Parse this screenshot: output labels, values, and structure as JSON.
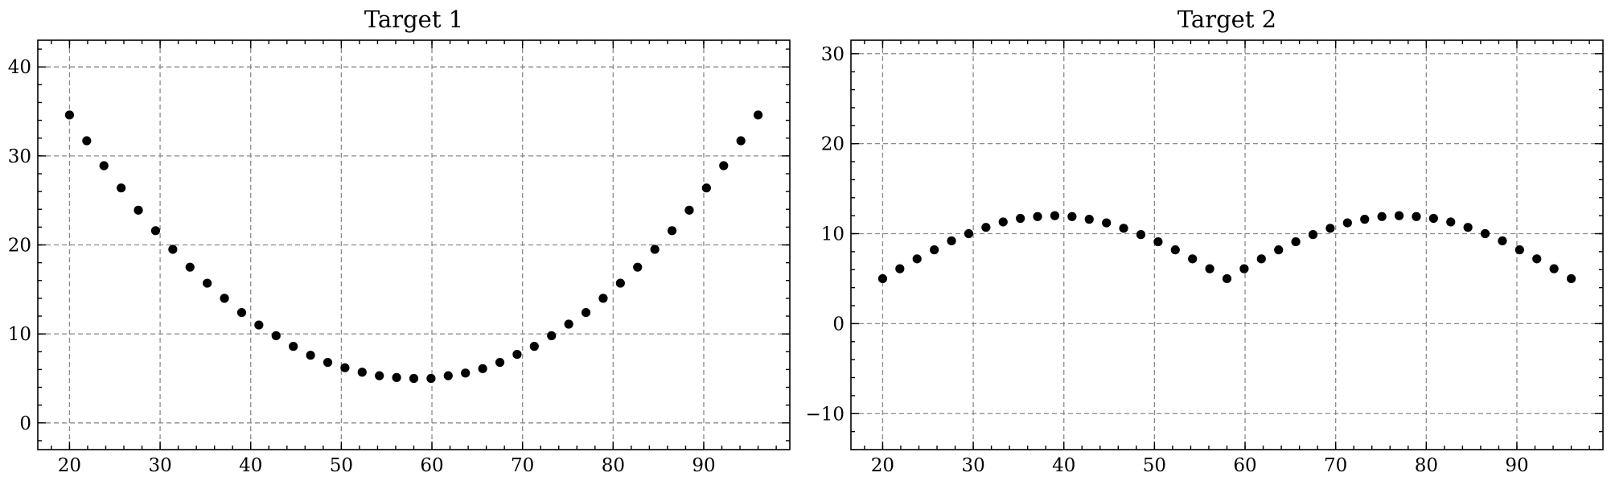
{
  "chart_data": [
    {
      "type": "scatter",
      "title": "Target 1",
      "xlabel": "",
      "ylabel": "",
      "xlim": [
        16.5,
        99.5
      ],
      "ylim": [
        -3,
        43
      ],
      "xticks": [
        20,
        30,
        40,
        50,
        60,
        70,
        80,
        90
      ],
      "yticks": [
        0,
        10,
        20,
        30,
        40
      ],
      "x_minor_step": 2,
      "y_minor_step": 2,
      "grid": true,
      "marker_color": "#000000",
      "series": [
        {
          "x": [
            20,
            21.9,
            23.8,
            25.7,
            27.6,
            29.5,
            31.4,
            33.3,
            35.2,
            37.1,
            39.0,
            40.9,
            42.8,
            44.7,
            46.6,
            48.5,
            50.4,
            52.3,
            54.2,
            56.1,
            58.0,
            59.9,
            61.8,
            63.7,
            65.6,
            67.5,
            69.4,
            71.3,
            73.2,
            75.1,
            77.0,
            78.9,
            80.8,
            82.7,
            84.6,
            86.5,
            88.4,
            90.3,
            92.2,
            94.1,
            96.0
          ],
          "y": [
            34.6,
            31.7,
            28.9,
            26.4,
            23.9,
            21.6,
            19.5,
            17.5,
            15.7,
            14.0,
            12.4,
            11.0,
            9.8,
            8.6,
            7.6,
            6.8,
            6.2,
            5.7,
            5.3,
            5.1,
            5.0,
            5.0,
            5.3,
            5.6,
            6.1,
            6.8,
            7.7,
            8.6,
            9.8,
            11.1,
            12.4,
            14.0,
            15.7,
            17.5,
            19.5,
            21.6,
            23.9,
            26.4,
            28.9,
            31.7,
            34.6
          ]
        }
      ]
    },
    {
      "type": "scatter",
      "title": "Target 2",
      "xlabel": "",
      "ylabel": "",
      "xlim": [
        16.5,
        99.5
      ],
      "ylim": [
        -14,
        31.5
      ],
      "xticks": [
        20,
        30,
        40,
        50,
        60,
        70,
        80,
        90
      ],
      "yticks": [
        -10,
        0,
        10,
        20,
        30
      ],
      "x_minor_step": 2,
      "y_minor_step": 2,
      "grid": true,
      "marker_color": "#000000",
      "series": [
        {
          "x": [
            20,
            21.9,
            23.8,
            25.7,
            27.6,
            29.5,
            31.4,
            33.3,
            35.2,
            37.1,
            39.0,
            40.9,
            42.8,
            44.7,
            46.6,
            48.5,
            50.4,
            52.3,
            54.2,
            56.1,
            58.0,
            59.9,
            61.8,
            63.7,
            65.6,
            67.5,
            69.4,
            71.3,
            73.2,
            75.1,
            77.0,
            78.9,
            80.8,
            82.7,
            84.6,
            86.5,
            88.4,
            90.3,
            92.2,
            94.1,
            96.0
          ],
          "y": [
            5.0,
            6.1,
            7.2,
            8.2,
            9.2,
            10.0,
            10.7,
            11.3,
            11.7,
            11.9,
            12.0,
            11.9,
            11.6,
            11.2,
            10.6,
            9.9,
            9.1,
            8.2,
            7.2,
            6.1,
            5.0,
            6.1,
            7.2,
            8.2,
            9.1,
            9.9,
            10.6,
            11.2,
            11.6,
            11.9,
            12.0,
            11.9,
            11.7,
            11.3,
            10.7,
            10.0,
            9.2,
            8.2,
            7.2,
            6.1,
            5.0
          ]
        }
      ]
    }
  ]
}
